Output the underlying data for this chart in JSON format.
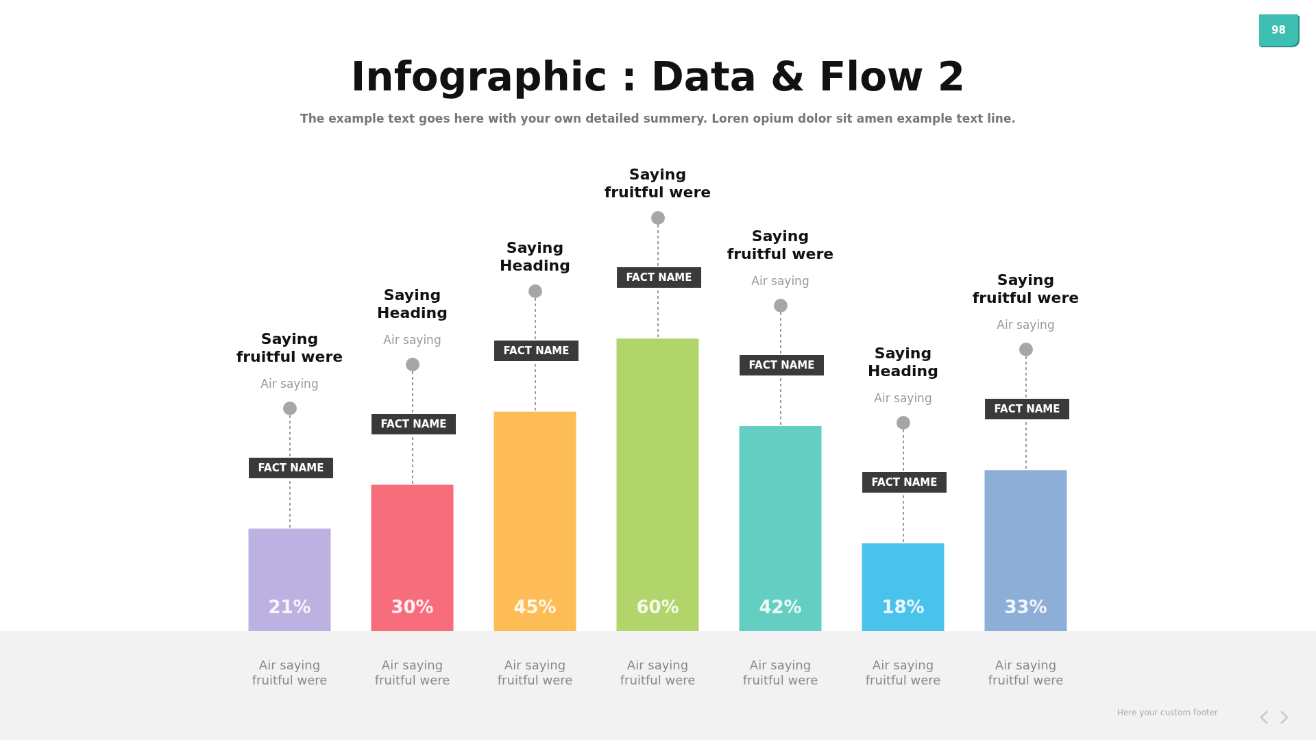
{
  "chart_data": {
    "type": "bar",
    "title": "Infographic : Data & Flow 2",
    "subtitle": "The example text goes here with your own detailed summery. Loren opium dolor sit amen example text line.",
    "categories": [
      "Air saying\nfruitful were",
      "Air saying\nfruitful were",
      "Air saying\nfruitful were",
      "Air saying\nfruitful were",
      "Air saying\nfruitful were",
      "Air saying\nfruitful were",
      "Air saying\nfruitful were"
    ],
    "values": [
      21,
      30,
      45,
      60,
      42,
      18,
      33
    ],
    "value_labels": [
      "21%",
      "30%",
      "45%",
      "60%",
      "42%",
      "18%",
      "33%"
    ],
    "colors": [
      "#b3a6dc",
      "#f7596a",
      "#fdb33f",
      "#a6cf55",
      "#4fc7bb",
      "#30b9e9",
      "#7da3d2"
    ],
    "annotations": [
      "Saying\nfruitful were",
      "Saying\nHeading",
      "Saying\nHeading",
      "Saying\nfruitful were",
      "Saying\nfruitful were",
      "Saying\nHeading",
      "Saying\nfruitful were",
      "Air saying",
      "Air saying",
      "Air saying",
      "Air saying",
      "Air saying",
      "FACT NAME",
      "FACT NAME",
      "FACT NAME",
      "FACT NAME",
      "FACT NAME",
      "FACT NAME",
      "FACT NAME",
      "Here your custom footer",
      "98"
    ]
  }
}
